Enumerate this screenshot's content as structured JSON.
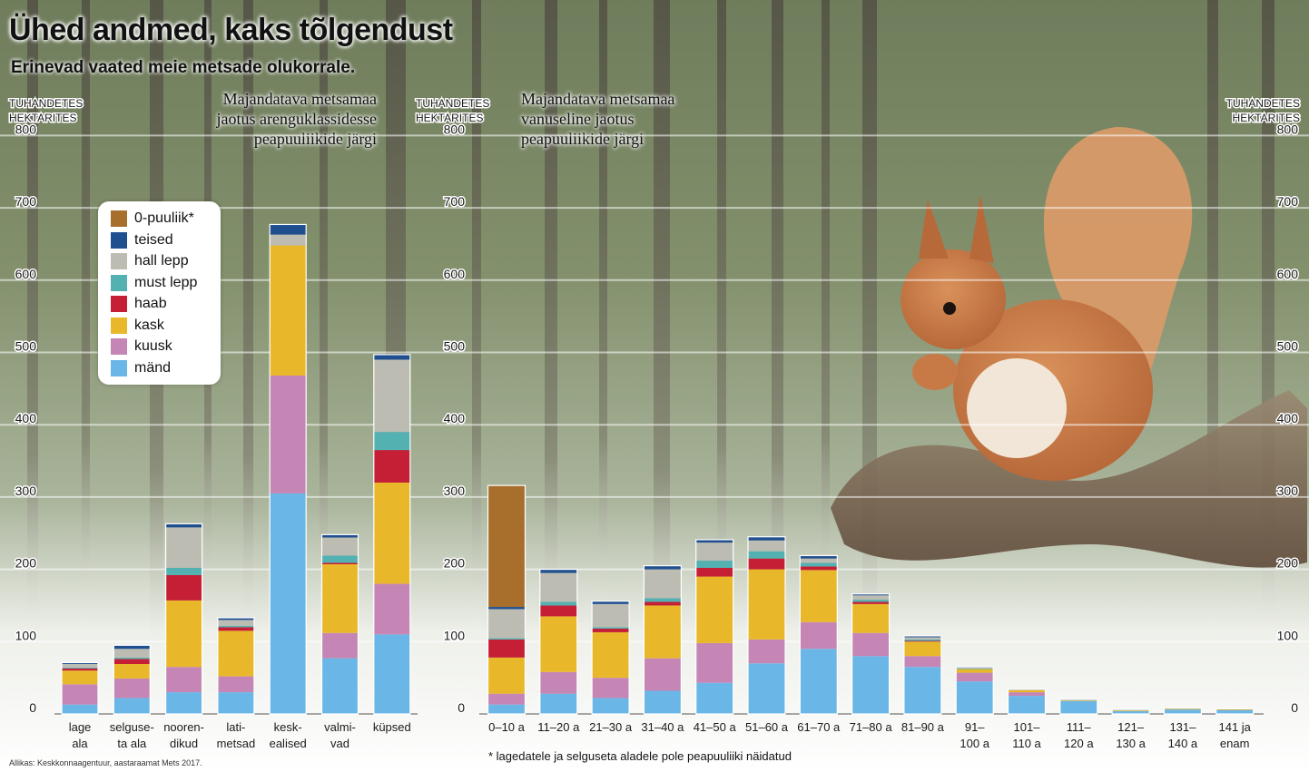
{
  "header": {
    "title": "Ühed andmed, kaks tõlgendust",
    "subtitle": "Erinevad vaated meie metsade olukorrale."
  },
  "source": "Allikas: Keskkonnaagentuur, aastaraamat Mets 2017.",
  "note": "* lagedatele ja selguseta aladele pole peapuuliiki näidatud",
  "axis_unit": [
    "TUHANDETES",
    "HEKTARITES"
  ],
  "legend": [
    {
      "name": "0-puuliik*",
      "color": "#a86f2c"
    },
    {
      "name": "teised",
      "color": "#1f4f8f"
    },
    {
      "name": "hall lepp",
      "color": "#bcbcb3"
    },
    {
      "name": "must lepp",
      "color": "#54b1b1"
    },
    {
      "name": "haab",
      "color": "#c41f35"
    },
    {
      "name": "kask",
      "color": "#e9b82a"
    },
    {
      "name": "kuusk",
      "color": "#c586b5"
    },
    {
      "name": "mänd",
      "color": "#6ab7e7"
    }
  ],
  "chart_data": [
    {
      "type": "bar",
      "stacked": true,
      "title": "Majandatava metsamaa jaotus arenguklassidesse peapuuliikide järgi",
      "ylabel": "TUHANDETES HEKTARITES",
      "ylim": [
        0,
        800
      ],
      "yticks": [
        0,
        100,
        200,
        300,
        400,
        500,
        600,
        700,
        800
      ],
      "categories": [
        [
          "lage",
          "ala"
        ],
        [
          "selguse-",
          "ta ala"
        ],
        [
          "nooren-",
          "dikud"
        ],
        [
          "lati-",
          "metsad"
        ],
        [
          "kesk-",
          "ealised"
        ],
        [
          "valmi-",
          "vad"
        ],
        [
          "küpsed"
        ]
      ],
      "series": [
        {
          "name": "mänd",
          "values": [
            13,
            22,
            30,
            30,
            305,
            77,
            110
          ]
        },
        {
          "name": "kuusk",
          "values": [
            28,
            27,
            35,
            22,
            163,
            35,
            70
          ]
        },
        {
          "name": "kask",
          "values": [
            19,
            20,
            92,
            63,
            180,
            95,
            140
          ]
        },
        {
          "name": "haab",
          "values": [
            3,
            7,
            35,
            5,
            0,
            2,
            45
          ]
        },
        {
          "name": "must lepp",
          "values": [
            1,
            2,
            10,
            2,
            0,
            10,
            25
          ]
        },
        {
          "name": "hall lepp",
          "values": [
            5,
            12,
            56,
            8,
            15,
            25,
            100
          ]
        },
        {
          "name": "teised",
          "values": [
            2,
            5,
            5,
            3,
            14,
            4,
            7
          ]
        },
        {
          "name": "0-puuliik*",
          "values": [
            0,
            0,
            0,
            0,
            0,
            0,
            0
          ]
        }
      ]
    },
    {
      "type": "bar",
      "stacked": true,
      "title": "Majandatava metsamaa vanuseline jaotus peapuuliikide järgi",
      "ylabel": "TUHANDETES HEKTARITES",
      "ylim": [
        0,
        800
      ],
      "yticks": [
        0,
        100,
        200,
        300,
        400,
        500,
        600,
        700,
        800
      ],
      "categories": [
        [
          "0–10 a"
        ],
        [
          "11–20 a"
        ],
        [
          "21–30 a"
        ],
        [
          "31–40 a"
        ],
        [
          "41–50 a"
        ],
        [
          "51–60 a"
        ],
        [
          "61–70 a"
        ],
        [
          "71–80 a"
        ],
        [
          "81–90 a"
        ],
        [
          "91–",
          "100 a"
        ],
        [
          "101–",
          "110 a"
        ],
        [
          "111–",
          "120 a"
        ],
        [
          "121–",
          "130 a"
        ],
        [
          "131–",
          "140 a"
        ],
        [
          "141 ja",
          "enam"
        ]
      ],
      "series": [
        {
          "name": "mänd",
          "values": [
            13,
            28,
            22,
            32,
            43,
            70,
            90,
            80,
            65,
            45,
            25,
            18,
            4,
            6,
            5
          ]
        },
        {
          "name": "kuusk",
          "values": [
            15,
            30,
            28,
            45,
            55,
            33,
            37,
            32,
            15,
            12,
            5,
            0,
            0,
            0,
            0
          ]
        },
        {
          "name": "kask",
          "values": [
            50,
            77,
            63,
            73,
            92,
            97,
            72,
            40,
            20,
            5,
            3,
            1,
            1,
            1,
            1
          ]
        },
        {
          "name": "haab",
          "values": [
            25,
            15,
            5,
            5,
            12,
            15,
            5,
            3,
            1,
            0,
            0,
            0,
            0,
            0,
            0
          ]
        },
        {
          "name": "must lepp",
          "values": [
            2,
            5,
            2,
            5,
            10,
            10,
            5,
            3,
            2,
            1,
            0,
            0,
            0,
            0,
            0
          ]
        },
        {
          "name": "hall lepp",
          "values": [
            40,
            40,
            32,
            40,
            25,
            15,
            6,
            6,
            3,
            1,
            0,
            0,
            0,
            0,
            0
          ]
        },
        {
          "name": "teised",
          "values": [
            3,
            5,
            4,
            5,
            4,
            5,
            4,
            2,
            2,
            1,
            1,
            1,
            1,
            1,
            1
          ]
        },
        {
          "name": "0-puuliik*",
          "values": [
            168,
            0,
            0,
            0,
            0,
            0,
            0,
            0,
            0,
            0,
            0,
            0,
            0,
            0,
            0
          ]
        }
      ]
    }
  ]
}
